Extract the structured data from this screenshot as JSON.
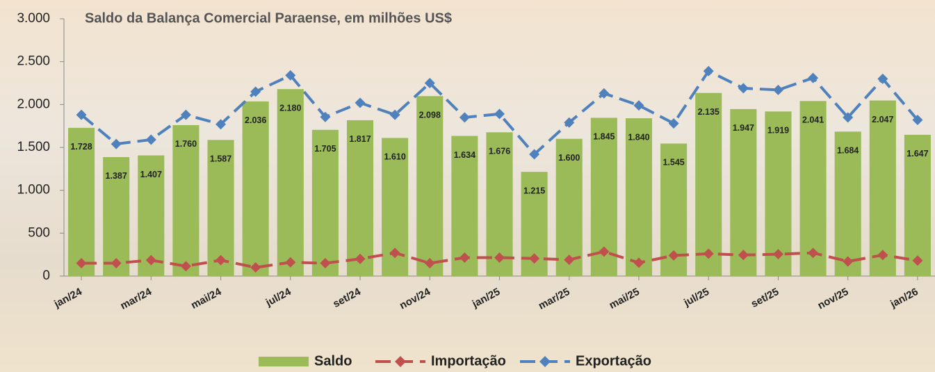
{
  "chart_data": {
    "type": "bar",
    "title": "Saldo da Balança Comercial Paraense, em milhões US$",
    "categories": [
      "jan/24",
      null,
      "mar/24",
      null,
      "mai/24",
      null,
      "jul/24",
      null,
      "set/24",
      null,
      "nov/24",
      null,
      "jan/25",
      null,
      "mar/25",
      null,
      "mai/25",
      null,
      "jul/25",
      null,
      "set/25",
      null,
      "nov/25",
      null,
      "jan/26"
    ],
    "series": [
      {
        "name": "Saldo",
        "type": "bar",
        "color": "#9bbb59",
        "values": [
          1728,
          1387,
          1407,
          1760,
          1587,
          2036,
          2180,
          1705,
          1817,
          1610,
          2098,
          1634,
          1676,
          1215,
          1600,
          1845,
          1840,
          1545,
          2135,
          1947,
          1919,
          2041,
          1684,
          2047,
          1647
        ],
        "value_labels": [
          "1.728",
          "1.387",
          "1.407",
          "1.760",
          "1.587",
          "2.036",
          "2.180",
          "1.705",
          "1.817",
          "1.610",
          "2.098",
          "1.634",
          "1.676",
          "1.215",
          "1.600",
          "1.845",
          "1.840",
          "1.545",
          "2.135",
          "1.947",
          "1.919",
          "2.041",
          "1.684",
          "2.047",
          "1.647"
        ]
      },
      {
        "name": "Importação",
        "type": "line",
        "color": "#c0504d",
        "values": [
          150,
          150,
          185,
          115,
          185,
          100,
          160,
          150,
          200,
          270,
          150,
          215,
          215,
          205,
          190,
          285,
          155,
          240,
          260,
          245,
          255,
          270,
          170,
          245,
          180
        ]
      },
      {
        "name": "Exportação",
        "type": "line",
        "color": "#4f81bd",
        "values": [
          1880,
          1540,
          1590,
          1880,
          1770,
          2150,
          2340,
          1855,
          2020,
          1880,
          2250,
          1850,
          1890,
          1420,
          1790,
          2130,
          1990,
          1780,
          2390,
          2190,
          2170,
          2310,
          1850,
          2300,
          1820
        ]
      }
    ],
    "ylim": [
      0,
      3000
    ],
    "yticks": [
      0,
      500,
      {
        "value": 1000,
        "label": "1.000"
      },
      {
        "value": 1500,
        "label": "1.500"
      },
      {
        "value": 2000,
        "label": "2.000"
      },
      {
        "value": 2500,
        "label": "2.500"
      },
      {
        "value": 3000,
        "label": "3.000"
      }
    ],
    "legend": "bottom"
  }
}
